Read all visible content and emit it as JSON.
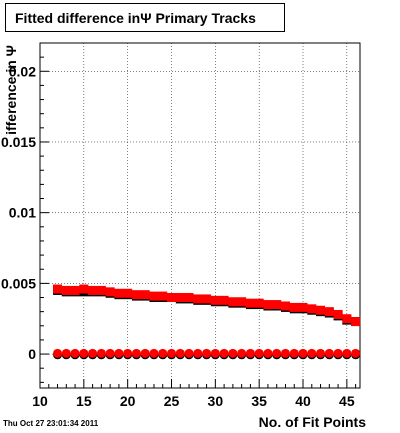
{
  "title": "Fitted difference inΨ  Primary Tracks",
  "timestamp": "Thu Oct 27 23:01:34 2011",
  "chart_data": {
    "type": "scatter",
    "title": "Fitted difference inΨ  Primary Tracks",
    "xlabel": "No. of Fit Points",
    "ylabel": "ifference in Ψ",
    "xlim": [
      10,
      46.5
    ],
    "ylim": [
      -0.0024,
      0.022
    ],
    "x_ticks": [
      10,
      15,
      20,
      25,
      30,
      35,
      40,
      45
    ],
    "x_tick_labels": [
      "10",
      "15",
      "20",
      "25",
      "30",
      "35",
      "40",
      "45"
    ],
    "y_ticks": [
      0,
      0.005,
      0.01,
      0.015,
      0.02
    ],
    "y_tick_labels": [
      "0",
      "0.005",
      "0.01",
      "0.015",
      "0.02"
    ],
    "grid": true,
    "x": [
      12,
      13,
      14,
      15,
      16,
      17,
      18,
      19,
      20,
      21,
      22,
      23,
      24,
      25,
      26,
      27,
      28,
      29,
      30,
      31,
      32,
      33,
      34,
      35,
      36,
      37,
      38,
      39,
      40,
      41,
      42,
      43,
      44,
      45,
      46
    ],
    "series": [
      {
        "color": "#000000",
        "marker": "square",
        "values": [
          0.0045,
          0.0044,
          0.0044,
          0.0044,
          0.0044,
          0.0044,
          0.0043,
          0.0042,
          0.0042,
          0.0041,
          0.0041,
          0.004,
          0.004,
          0.004,
          0.0039,
          0.0039,
          0.0038,
          0.0038,
          0.0037,
          0.0037,
          0.0036,
          0.0036,
          0.0035,
          0.0035,
          0.0034,
          0.0034,
          0.0033,
          0.0032,
          0.0032,
          0.0031,
          0.003,
          0.0029,
          0.0027,
          0.0024,
          0.0023
        ]
      },
      {
        "color": "#ff0000",
        "marker": "square",
        "values": [
          0.0046,
          0.0045,
          0.0045,
          0.0046,
          0.0045,
          0.0045,
          0.0044,
          0.0043,
          0.0043,
          0.0042,
          0.0042,
          0.0041,
          0.0041,
          0.004,
          0.004,
          0.004,
          0.0039,
          0.0039,
          0.0038,
          0.0038,
          0.0037,
          0.0037,
          0.0036,
          0.0036,
          0.0035,
          0.0035,
          0.0034,
          0.0033,
          0.0033,
          0.0032,
          0.0031,
          0.003,
          0.0028,
          0.0025,
          0.0023
        ]
      },
      {
        "color": "#000000",
        "marker": "circle",
        "values": [
          -5e-05,
          -5e-05,
          -5e-05,
          -5e-05,
          -5e-05,
          -5e-05,
          -5e-05,
          -5e-05,
          -5e-05,
          -5e-05,
          -5e-05,
          -5e-05,
          -5e-05,
          -5e-05,
          -5e-05,
          -5e-05,
          -5e-05,
          -5e-05,
          -5e-05,
          -5e-05,
          -5e-05,
          -5e-05,
          -5e-05,
          -5e-05,
          -5e-05,
          -5e-05,
          -5e-05,
          -5e-05,
          -5e-05,
          -5e-05,
          -5e-05,
          -5e-05,
          -5e-05,
          -5e-05,
          -5e-05
        ]
      },
      {
        "color": "#ff0000",
        "marker": "circle",
        "values": [
          5e-05,
          5e-05,
          5e-05,
          5e-05,
          5e-05,
          5e-05,
          5e-05,
          5e-05,
          5e-05,
          5e-05,
          5e-05,
          5e-05,
          5e-05,
          5e-05,
          5e-05,
          5e-05,
          5e-05,
          5e-05,
          5e-05,
          5e-05,
          5e-05,
          5e-05,
          5e-05,
          5e-05,
          5e-05,
          5e-05,
          5e-05,
          5e-05,
          5e-05,
          5e-05,
          5e-05,
          5e-05,
          5e-05,
          5e-05,
          5e-05
        ]
      }
    ]
  }
}
